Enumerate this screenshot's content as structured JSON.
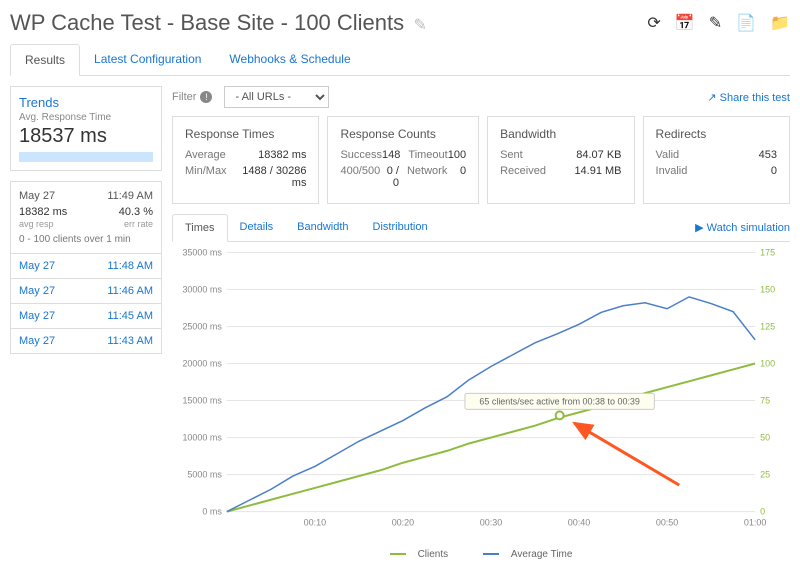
{
  "title": "WP Cache Test - Base Site - 100 Clients",
  "tabs": [
    "Results",
    "Latest Configuration",
    "Webhooks & Schedule"
  ],
  "trends": {
    "title": "Trends",
    "sub": "Avg. Response Time",
    "value": "18537 ms"
  },
  "run": {
    "date": "May 27",
    "time": "11:49 AM",
    "resp": "18382 ms",
    "resp_sub": "avg resp",
    "err": "40.3 %",
    "err_sub": "err rate",
    "clients": "0  -  100 clients over 1 min"
  },
  "history": [
    {
      "d": "May 27",
      "t": "11:48 AM"
    },
    {
      "d": "May 27",
      "t": "11:46 AM"
    },
    {
      "d": "May 27",
      "t": "11:45 AM"
    },
    {
      "d": "May 27",
      "t": "11:43 AM"
    }
  ],
  "filter": {
    "label": "Filter",
    "sel": "- All URLs -"
  },
  "share": "Share this test",
  "cards": {
    "rt": {
      "title": "Response Times",
      "avg_l": "Average",
      "avg_v": "18382 ms",
      "mm_l": "Min/Max",
      "mm_v": "1488 / 30286 ms"
    },
    "rc": {
      "title": "Response Counts",
      "s_l": "Success",
      "s_v": "148",
      "t_l": "Timeout",
      "t_v": "100",
      "f_l": "400/500",
      "f_v": "0 / 0",
      "n_l": "Network",
      "n_v": "0"
    },
    "bw": {
      "title": "Bandwidth",
      "s_l": "Sent",
      "s_v": "84.07 KB",
      "r_l": "Received",
      "r_v": "14.91 MB"
    },
    "rd": {
      "title": "Redirects",
      "v_l": "Valid",
      "v_v": "453",
      "i_l": "Invalid",
      "i_v": "0"
    }
  },
  "ctabs": [
    "Times",
    "Details",
    "Bandwidth",
    "Distribution"
  ],
  "watch": "Watch simulation",
  "chart": {
    "y1_ticks": [
      0,
      5000,
      10000,
      15000,
      20000,
      25000,
      30000,
      35000
    ],
    "y2_ticks": [
      0,
      25,
      50,
      75,
      100,
      125,
      150,
      175
    ],
    "x_ticks": [
      "00:10",
      "00:20",
      "00:30",
      "00:40",
      "00:50",
      "01:00"
    ],
    "client_color": "#8fbc3f",
    "avg_color": "#4a7fc7",
    "grid_color": "#e5e5e5",
    "axis_color": "#888",
    "y1_max": 35000,
    "y2_max": 175,
    "avg": [
      0,
      1500,
      3000,
      4800,
      6100,
      7800,
      9500,
      10900,
      12300,
      14000,
      15500,
      17800,
      19600,
      21200,
      22800,
      24000,
      25300,
      26900,
      27800,
      28200,
      27400,
      29000,
      28100,
      27000,
      23200
    ],
    "clients": [
      0,
      4,
      8,
      12,
      16,
      20,
      24,
      28,
      33,
      37,
      41,
      46,
      50,
      54,
      58,
      63,
      67,
      71,
      75,
      80,
      84,
      88,
      92,
      96,
      100
    ],
    "tooltip": "65 clients/sec active from 00:38 to 00:39",
    "arrow_color": "#ff5722"
  },
  "legend": {
    "c": "Clients",
    "a": "Average Time"
  }
}
